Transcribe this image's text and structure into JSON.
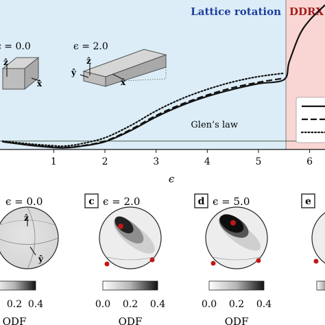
{
  "colors": {
    "lattice_bg": "#dcedf7",
    "ddrx_bg": "#f9d6d3",
    "lattice_text": "#1f3f9c",
    "ddrx_text": "#a61c1c",
    "glen_line": "#4a5f4a",
    "pole_dot": "#c01818",
    "box_fill": "#c8c8c8",
    "box_stroke": "#505050"
  },
  "panel_top": {
    "region_labels": {
      "lattice": "Lattice rotation",
      "ddrx": "DDRX"
    },
    "glen_label": "Glen’s law",
    "inset_left": {
      "eps_label": "ϵ = 0.0",
      "axes": [
        "ẑ",
        "x̂"
      ]
    },
    "inset_right": {
      "eps_label": "ϵ = 2.0",
      "axes": [
        "ẑ",
        "ŷ",
        "x̂"
      ]
    }
  },
  "panel_bottom": {
    "stereonets": [
      {
        "letter": "",
        "eps_label": "ϵ = 0.0",
        "axes": [
          "ẑ",
          "ŷ"
        ]
      },
      {
        "letter": "c",
        "eps_label": "ϵ = 2.0"
      },
      {
        "letter": "d",
        "eps_label": "ϵ = 5.0"
      },
      {
        "letter": "e",
        "eps_label": ""
      }
    ],
    "colorbar_ticks": [
      "0.0",
      "0.2",
      "0.4"
    ],
    "colorbar_label": "ODF"
  },
  "chart_data": [
    {
      "type": "line",
      "xlabel": "ϵ",
      "ylabel": "",
      "xlim": [
        -0.05,
        6.3
      ],
      "x_ticks": [
        1,
        2,
        3,
        4,
        5,
        6
      ],
      "grid": false,
      "regions": [
        {
          "label": "Lattice rotation",
          "x_range": [
            -0.05,
            5.5
          ]
        },
        {
          "label": "DDRX",
          "x_range": [
            5.5,
            6.3
          ]
        }
      ],
      "reference_line": {
        "label": "Glen’s law",
        "y": 1.0
      },
      "ylim": [
        0.75,
        5.2
      ],
      "series": [
        {
          "style": "solid",
          "x": [
            0,
            0.5,
            1.0,
            1.2,
            1.5,
            2.0,
            2.5,
            3.0,
            3.5,
            4.0,
            4.5,
            5.0,
            5.5,
            5.6,
            5.8,
            6.0,
            6.3
          ],
          "y": [
            0.98,
            0.88,
            0.81,
            0.8,
            0.84,
            0.98,
            1.31,
            1.72,
            2.06,
            2.33,
            2.54,
            2.71,
            2.83,
            3.35,
            4.15,
            4.6,
            5.05
          ]
        },
        {
          "style": "dashed",
          "x": [
            0,
            0.5,
            1.0,
            1.2,
            1.5,
            2.0,
            2.5,
            3.0,
            3.5,
            4.0,
            4.5,
            5.0,
            5.5
          ],
          "y": [
            0.98,
            0.89,
            0.82,
            0.81,
            0.85,
            1.0,
            1.34,
            1.76,
            2.1,
            2.37,
            2.59,
            2.75,
            2.87
          ]
        },
        {
          "style": "dotted",
          "x": [
            0,
            0.5,
            1.0,
            1.2,
            1.5,
            2.0,
            2.5,
            3.0,
            3.5,
            4.0,
            4.5,
            5.0,
            5.5
          ],
          "y": [
            1.0,
            0.92,
            0.86,
            0.85,
            0.91,
            1.1,
            1.46,
            1.9,
            2.26,
            2.54,
            2.76,
            2.92,
            3.02
          ]
        }
      ]
    }
  ]
}
